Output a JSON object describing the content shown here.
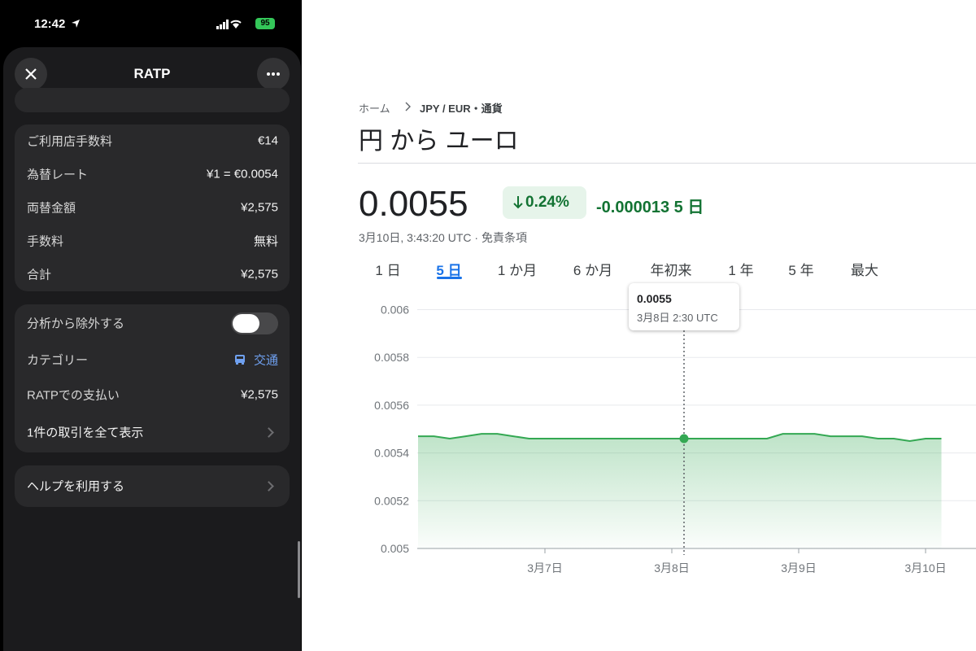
{
  "phone": {
    "status": {
      "time": "12:42",
      "battery": "95"
    },
    "header": {
      "title": "RATP"
    },
    "fees": [
      {
        "label": "ご利用店手数料",
        "value": "€14"
      },
      {
        "label": "為替レート",
        "value": "¥1 = €0.0054"
      },
      {
        "label": "両替金額",
        "value": "¥2,575"
      },
      {
        "label": "手数料",
        "value": "無料"
      },
      {
        "label": "合計",
        "value": "¥2,575"
      }
    ],
    "settings": {
      "exclude_label": "分析から除外する",
      "category_label": "カテゴリー",
      "category_value": "交通",
      "payments_label": "RATPでの支払い",
      "payments_value": "¥2,575",
      "show_all": "1件の取引を全て表示"
    },
    "help": "ヘルプを利用する"
  },
  "finance": {
    "breadcrumb": {
      "home": "ホーム",
      "current": "JPY / EUR・通貨"
    },
    "title": "円 から ユーロ",
    "price": "0.0055",
    "change_pct": "0.24%",
    "change": "-0.000013 5 日",
    "timestamp": "3月10日, 3:43:20 UTC · 免責条項",
    "tabs": [
      "1 日",
      "5 日",
      "1 か月",
      "6 か月",
      "年初来",
      "1 年",
      "5 年",
      "最大"
    ],
    "tooltip": {
      "value": "0.0055",
      "time": "3月8日 2:30 UTC"
    }
  },
  "chart_data": {
    "type": "area",
    "color": "#34a853",
    "categories": [
      null,
      null,
      null,
      null,
      null,
      null,
      null,
      null,
      "3月7日",
      null,
      null,
      null,
      null,
      null,
      null,
      null,
      "3月8日",
      null,
      null,
      null,
      null,
      null,
      null,
      null,
      "3月9日",
      null,
      null,
      null,
      null,
      null,
      null,
      null,
      "3月10日",
      null
    ],
    "values": [
      0.00547,
      0.00547,
      0.00546,
      0.00547,
      0.00548,
      0.00548,
      0.00547,
      0.00546,
      0.00546,
      0.00546,
      0.00546,
      0.00546,
      0.00546,
      0.00546,
      0.00546,
      0.00546,
      0.00546,
      0.00546,
      0.00546,
      0.00546,
      0.00546,
      0.00546,
      0.00546,
      0.00548,
      0.00548,
      0.00548,
      0.00547,
      0.00547,
      0.00547,
      0.00546,
      0.00546,
      0.00545,
      0.00546,
      0.00546
    ],
    "ylim": [
      0.005,
      0.00607
    ],
    "yticks": [
      0.005,
      0.0052,
      0.0054,
      0.0056,
      0.0058,
      0.006
    ],
    "grid": true
  }
}
